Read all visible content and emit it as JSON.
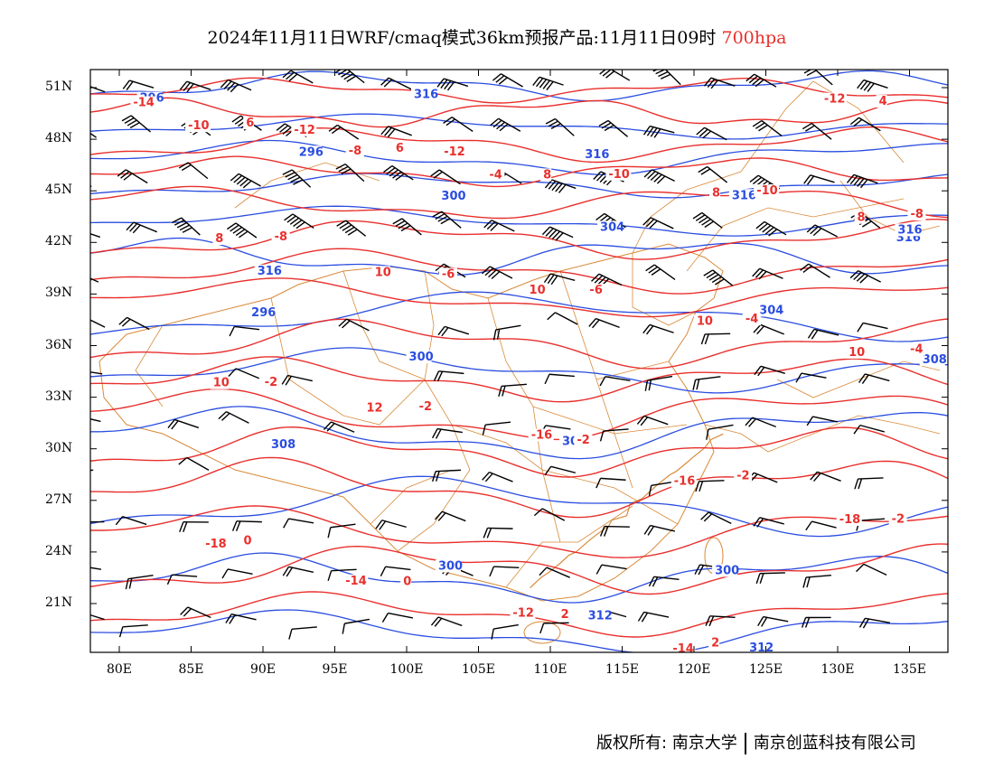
{
  "title": {
    "main": "2024年11月11日WRF/cmaq模式36km预报产品:11月11日09时",
    "level": "700hpa",
    "level_color": "#e8302d"
  },
  "colors": {
    "height_contour": "#2a4de0",
    "temperature_contour": "#e8302d",
    "boundaries": "#d98a3a",
    "wind_barbs": "#000000"
  },
  "axes": {
    "lat_labels": [
      "51N",
      "48N",
      "45N",
      "42N",
      "39N",
      "36N",
      "33N",
      "30N",
      "27N",
      "24N",
      "21N"
    ],
    "lon_labels": [
      "80E",
      "85E",
      "90E",
      "95E",
      "100E",
      "105E",
      "110E",
      "115E",
      "120E",
      "125E",
      "130E",
      "135E"
    ]
  },
  "contour_labels": {
    "height": [
      "296",
      "296",
      "300",
      "304",
      "304",
      "308",
      "308",
      "300",
      "312",
      "312",
      "316",
      "316",
      "316",
      "316",
      "316",
      "316",
      "296",
      "300",
      "300",
      "300"
    ],
    "temperature": [
      "-14",
      "-12",
      "-12",
      "-10",
      "-10",
      "-8",
      "-8",
      "-6",
      "-6",
      "-4",
      "-4",
      "-2",
      "-2",
      "-2",
      "-2",
      "-2",
      "0",
      "0",
      "2",
      "2",
      "4",
      "6",
      "6",
      "8",
      "8",
      "8",
      "8",
      "10",
      "10",
      "10",
      "10",
      "10",
      "12",
      "-16",
      "-16",
      "-18",
      "-18",
      "-14",
      "-12",
      "-14",
      "-12",
      "-10",
      "-8",
      "-4"
    ]
  },
  "footer": {
    "left": "版权所有: 南京大学",
    "right": "南京创蓝科技有限公司"
  }
}
